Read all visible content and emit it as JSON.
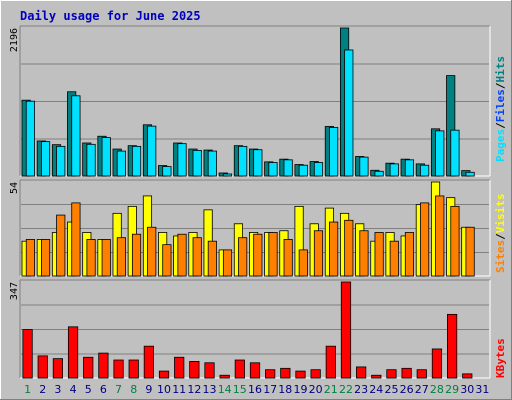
{
  "chart_data": [
    {
      "type": "bar",
      "title": "Daily usage for June 2025",
      "ymax_label": "2196",
      "categories": [
        "1",
        "2",
        "3",
        "4",
        "5",
        "6",
        "7",
        "8",
        "9",
        "10",
        "11",
        "12",
        "13",
        "14",
        "15",
        "16",
        "17",
        "18",
        "19",
        "20",
        "21",
        "22",
        "23",
        "24",
        "25",
        "26",
        "27",
        "28",
        "29",
        "30",
        "31"
      ],
      "weekend_days": [
        "1",
        "7",
        "8",
        "14",
        "15",
        "21",
        "22",
        "28",
        "29"
      ],
      "series": [
        {
          "name": "Hits",
          "color": "#008080",
          "values": [
            1125,
            520,
            465,
            1250,
            490,
            590,
            400,
            450,
            760,
            155,
            490,
            400,
            385,
            45,
            450,
            400,
            210,
            250,
            170,
            215,
            735,
            2196,
            290,
            85,
            190,
            250,
            180,
            700,
            1490,
            80,
            0
          ]
        },
        {
          "name": "Pages",
          "color": "#00e0ff",
          "values": [
            1110,
            510,
            440,
            1190,
            470,
            570,
            370,
            440,
            740,
            140,
            480,
            380,
            370,
            30,
            440,
            390,
            200,
            240,
            160,
            200,
            720,
            1870,
            280,
            70,
            180,
            240,
            160,
            670,
            680,
            55,
            0
          ]
        }
      ],
      "ylim": [
        0,
        2196
      ]
    },
    {
      "type": "bar",
      "ymax_label": "54",
      "categories": [
        "1",
        "2",
        "3",
        "4",
        "5",
        "6",
        "7",
        "8",
        "9",
        "10",
        "11",
        "12",
        "13",
        "14",
        "15",
        "16",
        "17",
        "18",
        "19",
        "20",
        "21",
        "22",
        "23",
        "24",
        "25",
        "26",
        "27",
        "28",
        "29",
        "30",
        "31"
      ],
      "series": [
        {
          "name": "Visits",
          "color": "#ffff00",
          "values": [
            20,
            21,
            25,
            31,
            25,
            21,
            36,
            40,
            46,
            25,
            23,
            25,
            38,
            15,
            30,
            25,
            25,
            26,
            40,
            30,
            39,
            36,
            30,
            20,
            25,
            23,
            41,
            54,
            45,
            28,
            0
          ]
        },
        {
          "name": "Sites",
          "color": "#ff8000",
          "values": [
            21,
            21,
            35,
            42,
            21,
            21,
            22,
            24,
            28,
            18,
            24,
            22,
            20,
            15,
            22,
            24,
            25,
            21,
            15,
            26,
            31,
            32,
            26,
            25,
            20,
            25,
            42,
            46,
            40,
            28,
            0
          ]
        }
      ],
      "ylim": [
        0,
        54
      ]
    },
    {
      "type": "bar",
      "ymax_label": "347",
      "categories": [
        "1",
        "2",
        "3",
        "4",
        "5",
        "6",
        "7",
        "8",
        "9",
        "10",
        "11",
        "12",
        "13",
        "14",
        "15",
        "16",
        "17",
        "18",
        "19",
        "20",
        "21",
        "22",
        "23",
        "24",
        "25",
        "26",
        "27",
        "28",
        "29",
        "30",
        "31"
      ],
      "series": [
        {
          "name": "KBytes",
          "color": "#ff0000",
          "values": [
            175,
            80,
            70,
            185,
            75,
            90,
            65,
            65,
            115,
            25,
            75,
            60,
            55,
            10,
            65,
            55,
            30,
            35,
            25,
            30,
            115,
            347,
            40,
            10,
            30,
            35,
            30,
            105,
            230,
            15,
            0
          ]
        }
      ],
      "ylim": [
        0,
        347
      ]
    }
  ],
  "legend": {
    "top": [
      "Pages",
      "/",
      "Files",
      "/",
      "Hits"
    ],
    "middle": [
      "Sites",
      "/",
      "Visits"
    ],
    "bottom": [
      "KBytes"
    ]
  },
  "colors": {
    "background": "#c0c0c0",
    "title": "#0000c0",
    "weekend_label": "#008040",
    "weekday_label": "#000080",
    "pages": "#00e0ff",
    "files": "#0040ff",
    "hits": "#008080",
    "sites": "#ff8000",
    "visits": "#ffff00",
    "kbytes": "#ff0000"
  }
}
